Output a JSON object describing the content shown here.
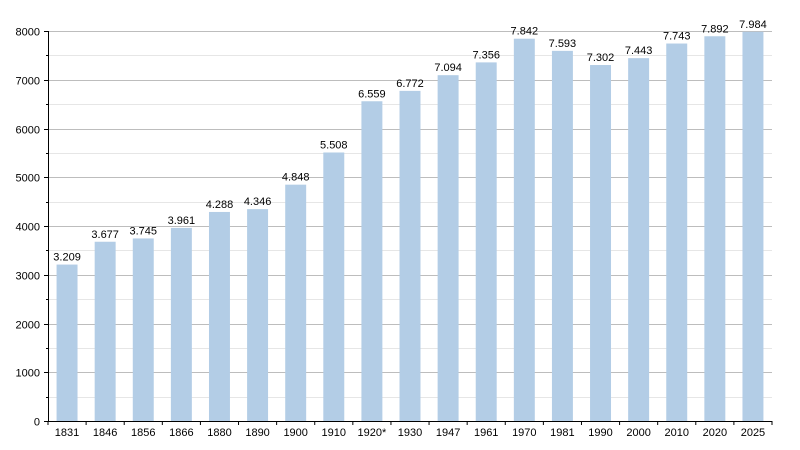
{
  "chart_data": {
    "type": "bar",
    "categories": [
      "1831",
      "1846",
      "1856",
      "1866",
      "1880",
      "1890",
      "1900",
      "1910",
      "1920*",
      "1930",
      "1947",
      "1961",
      "1970",
      "1981",
      "1990",
      "2000",
      "2010",
      "2020",
      "2025"
    ],
    "values": [
      3209,
      3677,
      3745,
      3961,
      4288,
      4346,
      4848,
      5508,
      6559,
      6772,
      7094,
      7356,
      7842,
      7593,
      7302,
      7443,
      7743,
      7892,
      7984
    ],
    "value_labels": [
      "3.209",
      "3.677",
      "3.745",
      "3.961",
      "4.288",
      "4.346",
      "4.848",
      "5.508",
      "6.559",
      "6.772",
      "7.094",
      "7.356",
      "7.842",
      "7.593",
      "7.302",
      "7.443",
      "7.743",
      "7.892",
      "7.984"
    ],
    "title": "",
    "xlabel": "",
    "ylabel": "",
    "ylim": [
      0,
      8000
    ],
    "yticks": [
      "0",
      "1000",
      "2000",
      "3000",
      "4000",
      "5000",
      "6000",
      "7000",
      "8000"
    ],
    "grid": true,
    "bar_color": "#b3cde6"
  }
}
